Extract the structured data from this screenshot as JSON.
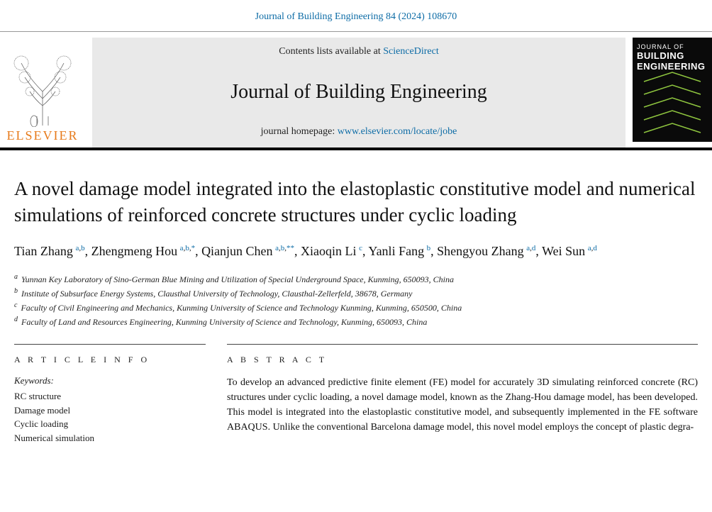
{
  "citation": {
    "text": "Journal of Building Engineering 84 (2024) 108670",
    "color": "#0d6ca6"
  },
  "header": {
    "contents_prefix": "Contents lists available at ",
    "contents_link": "ScienceDirect",
    "journal_name": "Journal of Building Engineering",
    "homepage_prefix": "journal homepage: ",
    "homepage_link": "www.elsevier.com/locate/jobe",
    "publisher": "ELSEVIER",
    "publisher_color": "#e77a1a",
    "cover": {
      "bg": "#0a0a0a",
      "journal_of": "JOURNAL OF",
      "line1": "BUILDING",
      "line2": "ENGINEERING",
      "chevron_color": "#8fc63f"
    },
    "band_bg": "#e9e9e9"
  },
  "title": "A novel damage model integrated into the elastoplastic constitutive model and numerical simulations of reinforced concrete structures under cyclic loading",
  "authors": [
    {
      "name": "Tian Zhang",
      "marks": [
        "a",
        "b"
      ]
    },
    {
      "name": "Zhengmeng Hou",
      "marks": [
        "a",
        "b",
        "*"
      ]
    },
    {
      "name": "Qianjun Chen",
      "marks": [
        "a",
        "b",
        "**"
      ]
    },
    {
      "name": "Xiaoqin Li",
      "marks": [
        "c"
      ]
    },
    {
      "name": "Yanli Fang",
      "marks": [
        "b"
      ]
    },
    {
      "name": "Shengyou Zhang",
      "marks": [
        "a",
        "d"
      ]
    },
    {
      "name": "Wei Sun",
      "marks": [
        "a",
        "d"
      ]
    }
  ],
  "affiliations": [
    {
      "tag": "a",
      "text": "Yunnan Key Laboratory of Sino-German Blue Mining and Utilization of Special Underground Space, Kunming, 650093, China"
    },
    {
      "tag": "b",
      "text": "Institute of Subsurface Energy Systems, Clausthal University of Technology, Clausthal-Zellerfeld, 38678, Germany"
    },
    {
      "tag": "c",
      "text": "Faculty of Civil Engineering and Mechanics, Kunming University of Science and Technology Kunming, Kunming, 650500, China"
    },
    {
      "tag": "d",
      "text": "Faculty of Land and Resources Engineering, Kunming University of Science and Technology, Kunming, 650093, China"
    }
  ],
  "article_info": {
    "heading": "A R T I C L E  I N F O",
    "keywords_label": "Keywords:",
    "keywords": [
      "RC structure",
      "Damage model",
      "Cyclic loading",
      "Numerical simulation"
    ]
  },
  "abstract": {
    "heading": "A B S T R A C T",
    "text": "To develop an advanced predictive finite element (FE) model for accurately 3D simulating reinforced concrete (RC) structures under cyclic loading, a novel damage model, known as the Zhang-Hou damage model, has been developed. This model is integrated into the elastoplastic constitutive model, and subsequently implemented in the FE software ABAQUS. Unlike the conventional Barcelona damage model, this novel model employs the concept of plastic degra-"
  },
  "colors": {
    "link": "#0d6ca6",
    "text": "#111111",
    "rule": "#444444",
    "band_border_bottom": "#000000"
  },
  "typography": {
    "title_fontsize": 27,
    "author_fontsize": 18,
    "affil_fontsize": 12,
    "body_fontsize": 14,
    "section_head_letterspacing": 4
  }
}
